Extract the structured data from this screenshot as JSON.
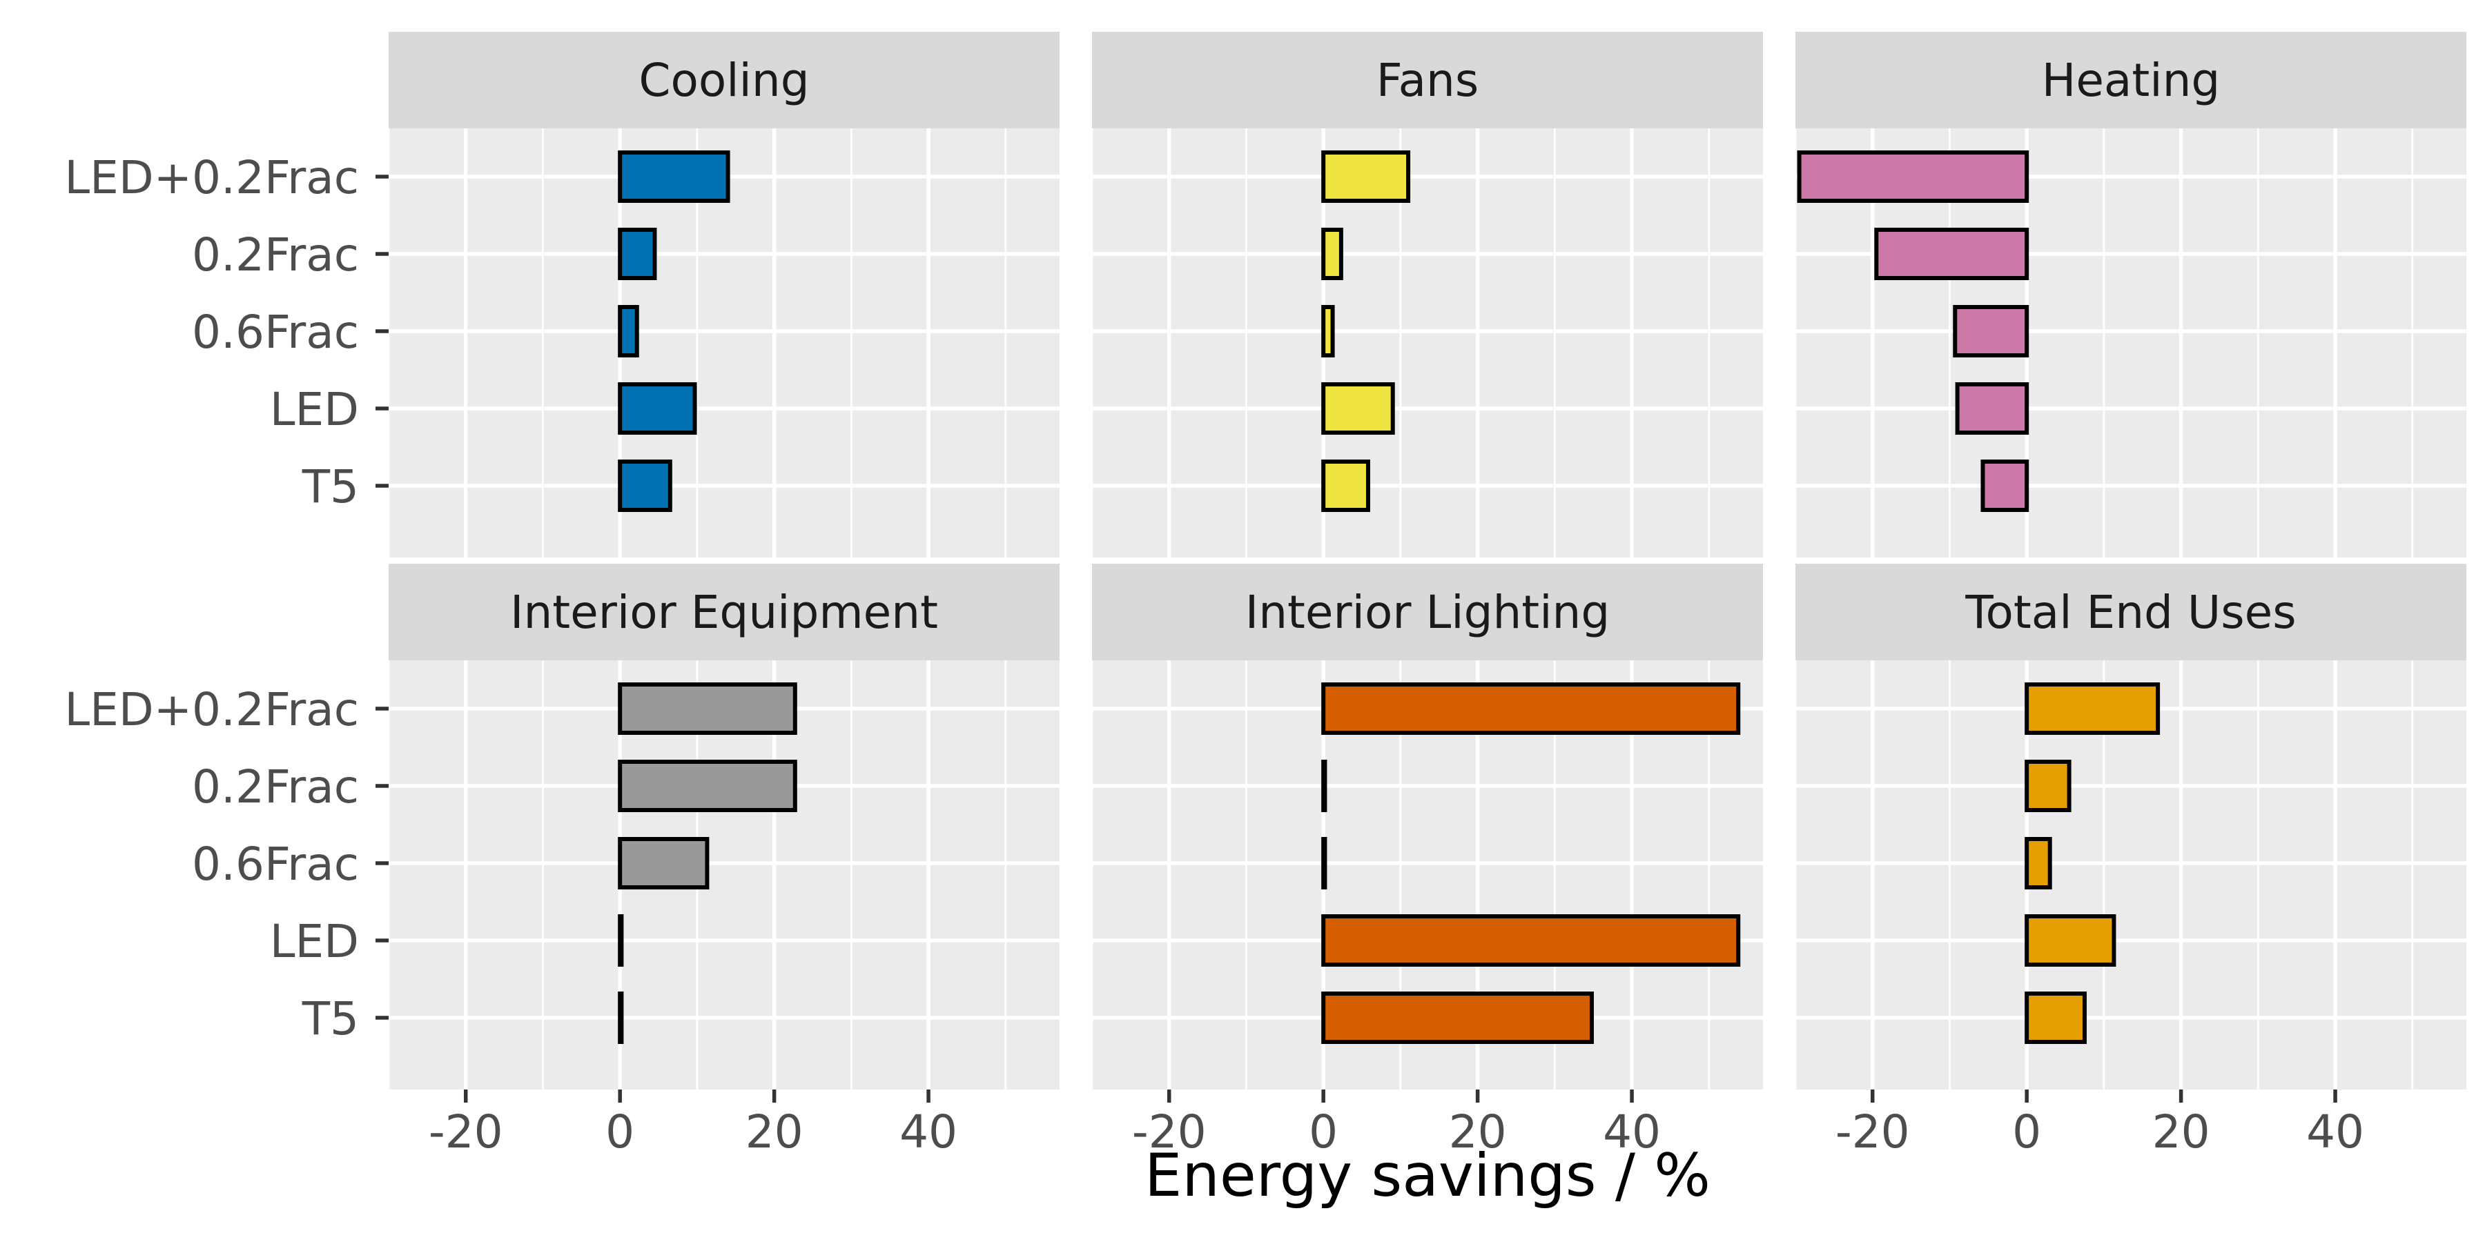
{
  "chart_data": {
    "type": "bar",
    "orientation": "horizontal",
    "layout": "facet-grid",
    "xlabel": "Energy savings / %",
    "ylabel": "",
    "xlim": [
      -30,
      57
    ],
    "x_ticks": [
      -20,
      0,
      20,
      40
    ],
    "x_tick_labels": [
      "-20",
      "0",
      "20",
      "40"
    ],
    "categories": [
      "LED+0.2Frac",
      "0.2Frac",
      "0.6Frac",
      "LED",
      "T5"
    ],
    "grid": true,
    "panels": [
      {
        "name": "Cooling",
        "color": "#0072B2",
        "values": [
          14,
          4.5,
          2.2,
          9.7,
          6.5
        ]
      },
      {
        "name": "Fans",
        "color": "#F0E442",
        "values": [
          11,
          2.3,
          1.2,
          9,
          5.8
        ]
      },
      {
        "name": "Heating",
        "color": "#CC79A7",
        "values": [
          -29.5,
          -19.5,
          -9.3,
          -9,
          -5.7
        ]
      },
      {
        "name": "Interior Equipment",
        "color": "#999999",
        "values": [
          22.7,
          22.7,
          11.3,
          0.2,
          0.2
        ]
      },
      {
        "name": "Interior Lighting",
        "color": "#D55E00",
        "values": [
          53.8,
          0.2,
          0.2,
          53.8,
          34.8
        ]
      },
      {
        "name": "Total End Uses",
        "color": "#E69F00",
        "values": [
          17,
          5.5,
          3,
          11.3,
          7.5
        ]
      }
    ]
  }
}
